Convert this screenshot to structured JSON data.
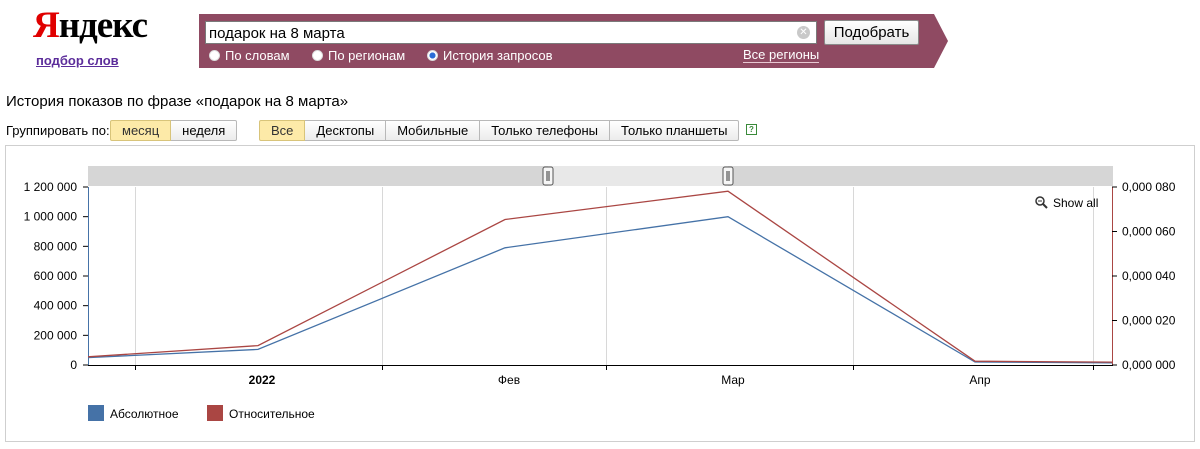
{
  "header": {
    "logo_first": "Я",
    "logo_rest": "ндекс",
    "logo_sub": "подбор слов"
  },
  "search": {
    "query": "подарок на 8 марта",
    "button_label": "Подобрать",
    "radios": [
      "По словам",
      "По регионам",
      "История запросов"
    ],
    "selected_radio": "История запросов",
    "regions_link": "Все регионы",
    "panel_color": "#8f4a62"
  },
  "history_title": "История показов по фразе «подарок на 8 марта»",
  "grouping": {
    "label": "Группировать по:",
    "options": [
      "месяц",
      "неделя"
    ],
    "selected": "месяц"
  },
  "devices": {
    "options": [
      "Все",
      "Десктопы",
      "Мобильные",
      "Только телефоны",
      "Только планшеты"
    ],
    "selected": "Все",
    "help": "?"
  },
  "chart_data": {
    "type": "line",
    "x_labels": [
      "2022",
      "Фев",
      "Мар",
      "Апр"
    ],
    "x": [
      "2021-12",
      "2022-01",
      "2022-02",
      "2022-03",
      "2022-04",
      "2022-05"
    ],
    "series": [
      {
        "name": "Абсолютное",
        "axis": "left",
        "color": "#4572a7",
        "values": [
          50000,
          105000,
          790000,
          1000000,
          20000,
          15000
        ]
      },
      {
        "name": "Относительное",
        "axis": "right",
        "color": "#aa4643",
        "values": [
          0.0037,
          0.0087,
          0.0654,
          0.0781,
          0.0017,
          0.0013
        ]
      }
    ],
    "y_left": {
      "ticks": [
        "0",
        "200 000",
        "400 000",
        "600 000",
        "800 000",
        "1 000 000",
        "1 200 000"
      ],
      "lim": [
        0,
        1200000
      ]
    },
    "y_right": {
      "ticks": [
        "0,000 000",
        "0,000 020",
        "0,000 040",
        "0,000 060",
        "0,000 080"
      ],
      "lim": [
        0,
        0.08
      ]
    },
    "show_all": "Show all",
    "grid": true,
    "legend": "bottom-left"
  }
}
